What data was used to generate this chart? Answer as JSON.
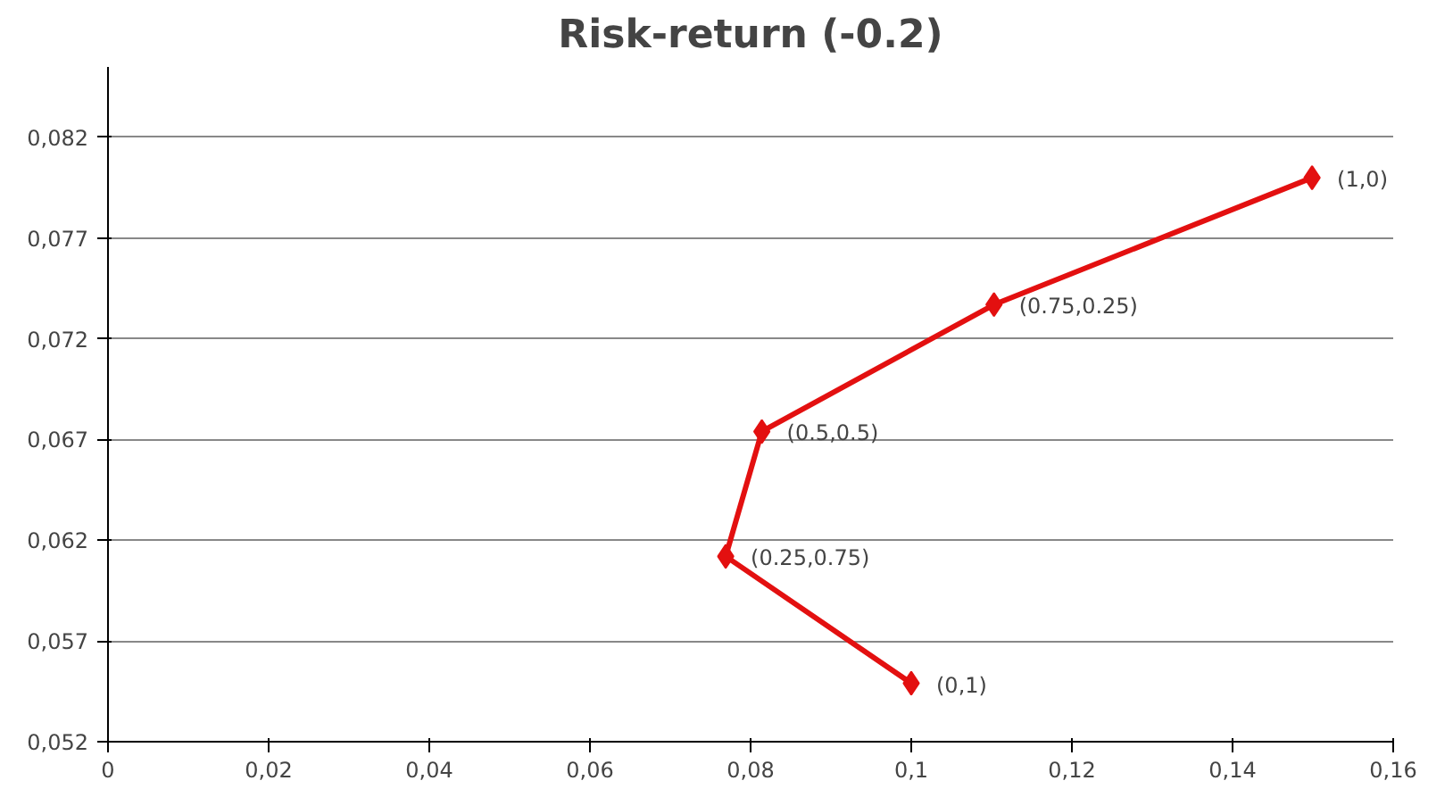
{
  "chart_data": {
    "type": "line",
    "title": "Risk-return (-0.2)",
    "x": [
      0.1,
      0.0769,
      0.0814,
      0.1103,
      0.1499
    ],
    "series": [
      {
        "color": "#e31010",
        "values": [
          0.0549,
          0.0612,
          0.0674,
          0.0737,
          0.08
        ]
      }
    ],
    "marker": "diamond",
    "line_style": "solid",
    "grid": "y",
    "xlim": [
      0,
      0.16
    ],
    "ylim": [
      0.052,
      0.0855
    ],
    "xticks": [
      0,
      {
        "value": 0.02,
        "label": "0,02"
      },
      {
        "value": 0.04,
        "label": "0,04"
      },
      {
        "value": 0.06,
        "label": "0,06"
      },
      {
        "value": 0.08,
        "label": "0,08"
      },
      {
        "value": 0.1,
        "label": "0,1"
      },
      {
        "value": 0.12,
        "label": "0,12"
      },
      {
        "value": 0.14,
        "label": "0,14"
      },
      {
        "value": 0.16,
        "label": "0,16"
      }
    ],
    "yticks": [
      {
        "value": 0.052,
        "label": "0,052"
      },
      {
        "value": 0.057,
        "label": "0,057"
      },
      {
        "value": 0.062,
        "label": "0,062"
      },
      {
        "value": 0.067,
        "label": "0,067"
      },
      {
        "value": 0.072,
        "label": "0,072"
      },
      {
        "value": 0.077,
        "label": "0,077"
      },
      {
        "value": 0.082,
        "label": "0,082"
      }
    ],
    "annotations": [
      {
        "text": "(0,1)",
        "x": 0.1,
        "y": 0.0549
      },
      {
        "text": "(0.25,0.75)",
        "x": 0.0769,
        "y": 0.0612
      },
      {
        "text": "(0.5,0.5)",
        "x": 0.0814,
        "y": 0.0674
      },
      {
        "text": "(0.75,0.25)",
        "x": 0.1103,
        "y": 0.0737
      },
      {
        "text": "(1,0)",
        "x": 0.1499,
        "y": 0.08
      }
    ]
  }
}
